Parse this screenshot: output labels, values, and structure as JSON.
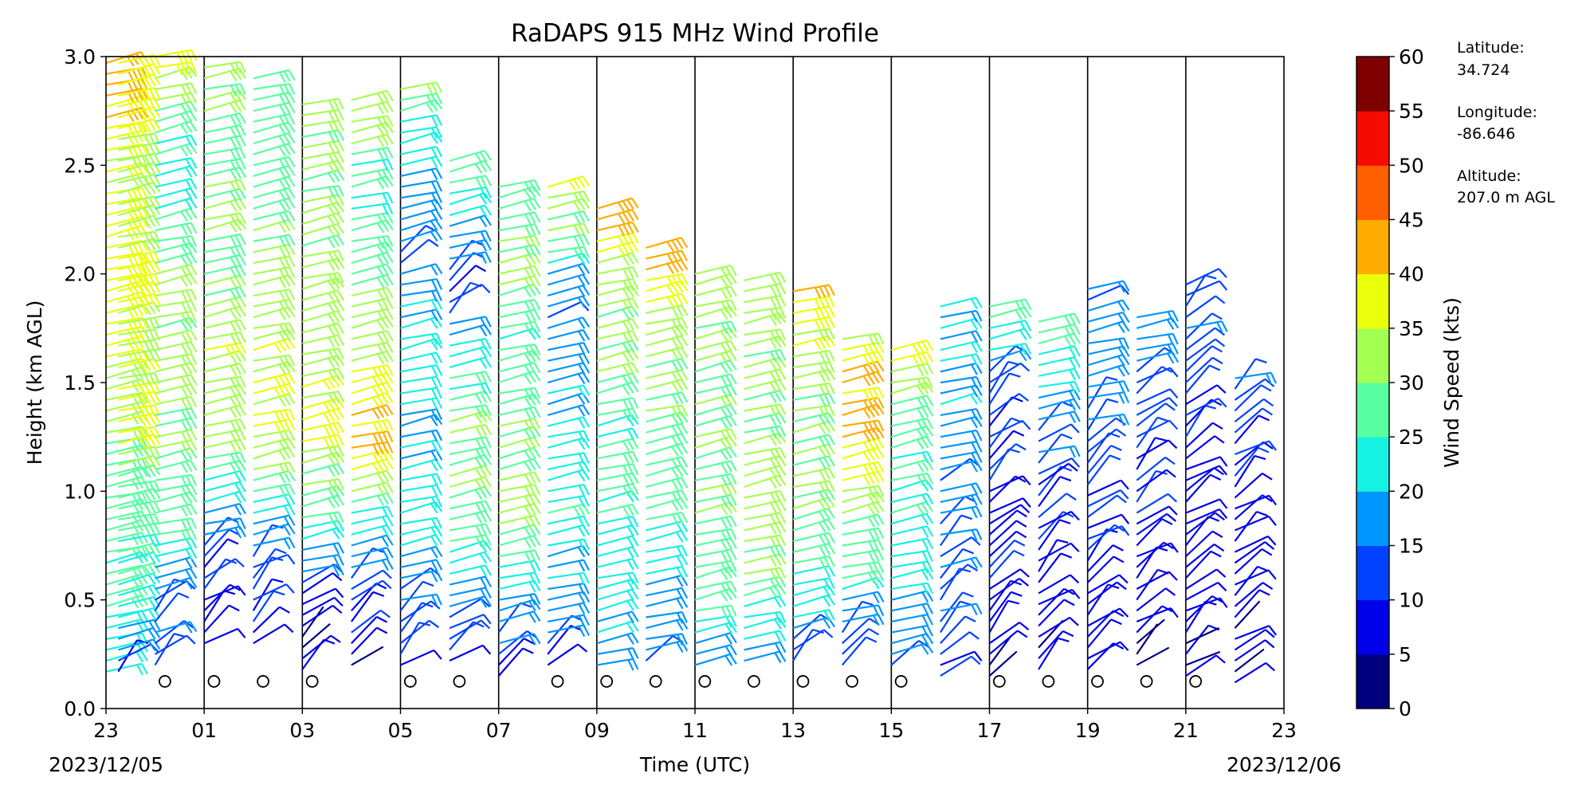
{
  "chart_data": {
    "type": "wind_barb_profile",
    "title": "RaDAPS 915 MHz Wind Profile",
    "xlabel": "Time (UTC)",
    "ylabel": "Height (km AGL)",
    "ylim": [
      0,
      3.0
    ],
    "y_ticks": [
      "0.0",
      "0.5",
      "1.0",
      "1.5",
      "2.0",
      "2.5",
      "3.0"
    ],
    "x_ticks": [
      "23",
      "01",
      "03",
      "05",
      "07",
      "09",
      "11",
      "13",
      "15",
      "17",
      "19",
      "21",
      "23"
    ],
    "x_hours": [
      -1,
      1,
      3,
      5,
      7,
      9,
      11,
      13,
      15,
      17,
      19,
      21,
      23
    ],
    "x_range_hours": [
      -1,
      23
    ],
    "start_date_label": "2023/12/05",
    "end_date_label": "2023/12/06",
    "vertical_lines_hours": [
      1,
      3,
      5,
      7,
      9,
      11,
      13,
      15,
      17,
      19,
      21
    ],
    "grid": false,
    "colorbar": {
      "label": "Wind Speed (kts)",
      "ticks": [
        "0",
        "5",
        "10",
        "15",
        "20",
        "25",
        "30",
        "35",
        "40",
        "45",
        "50",
        "55",
        "60"
      ],
      "colors": [
        "#00007f",
        "#0000e9",
        "#0042ff",
        "#0096ff",
        "#15f2e1",
        "#58ffa0",
        "#a4ff53",
        "#eaff0b",
        "#ffac00",
        "#ff5f00",
        "#f50b00",
        "#7f0000"
      ]
    },
    "barb_color_scale": [
      {
        "kts": 0,
        "color": "#00007f"
      },
      {
        "kts": 5,
        "color": "#0000e9"
      },
      {
        "kts": 10,
        "color": "#0042ff"
      },
      {
        "kts": 15,
        "color": "#0096ff"
      },
      {
        "kts": 20,
        "color": "#15f2e1"
      },
      {
        "kts": 25,
        "color": "#58ffa0"
      },
      {
        "kts": 30,
        "color": "#a4ff53"
      },
      {
        "kts": 35,
        "color": "#eaff0b"
      },
      {
        "kts": 40,
        "color": "#ffac00"
      },
      {
        "kts": 45,
        "color": "#ff5f00"
      },
      {
        "kts": 50,
        "color": "#f50b00"
      },
      {
        "kts": 55,
        "color": "#7f0000"
      }
    ],
    "calm_marker_height_km": 0.125,
    "calm_markers_hours": [
      0.2,
      1.2,
      2.2,
      3.2,
      5.2,
      6.2,
      8.2,
      9.2,
      10.2,
      11.2,
      12.2,
      13.2,
      14.2,
      15.2,
      17.2,
      18.2,
      19.2,
      20.2,
      21.2
    ],
    "profiles": [
      {
        "hour": -1.0,
        "top_km": 3.0,
        "bottom_km": 0.17,
        "speed_profile": [
          [
            0.17,
            22
          ],
          [
            0.5,
            25
          ],
          [
            1.0,
            28
          ],
          [
            1.5,
            35
          ],
          [
            2.0,
            37
          ],
          [
            2.5,
            36
          ],
          [
            3.0,
            45
          ]
        ]
      },
      {
        "hour": -0.75,
        "top_km": 3.0,
        "bottom_km": 0.17,
        "speed_profile": [
          [
            0.17,
            10
          ],
          [
            0.4,
            22
          ],
          [
            0.8,
            27
          ],
          [
            1.0,
            28
          ],
          [
            1.3,
            38
          ],
          [
            1.7,
            32
          ],
          [
            2.0,
            36
          ],
          [
            2.5,
            32
          ],
          [
            3.0,
            40
          ]
        ]
      },
      {
        "hour": 0.0,
        "top_km": 3.0,
        "bottom_km": 0.2,
        "speed_profile": [
          [
            0.2,
            12
          ],
          [
            0.5,
            15
          ],
          [
            0.8,
            25
          ],
          [
            1.2,
            30
          ],
          [
            1.6,
            32
          ],
          [
            2.0,
            30
          ],
          [
            2.4,
            22
          ],
          [
            3.0,
            36
          ]
        ]
      },
      {
        "hour": 1.0,
        "top_km": 2.95,
        "bottom_km": 0.3,
        "speed_profile": [
          [
            0.3,
            8
          ],
          [
            0.6,
            10
          ],
          [
            0.9,
            20
          ],
          [
            1.2,
            32
          ],
          [
            1.6,
            35
          ],
          [
            2.0,
            30
          ],
          [
            2.5,
            28
          ],
          [
            2.95,
            33
          ]
        ]
      },
      {
        "hour": 2.0,
        "top_km": 2.9,
        "bottom_km": 0.3,
        "speed_profile": [
          [
            0.3,
            8
          ],
          [
            0.6,
            12
          ],
          [
            0.9,
            22
          ],
          [
            1.3,
            36
          ],
          [
            1.7,
            34
          ],
          [
            2.2,
            30
          ],
          [
            2.9,
            28
          ]
        ]
      },
      {
        "hour": 3.0,
        "top_km": 2.8,
        "bottom_km": 0.18,
        "speed_profile": [
          [
            0.18,
            5
          ],
          [
            0.5,
            8
          ],
          [
            0.8,
            22
          ],
          [
            1.2,
            35
          ],
          [
            1.5,
            36
          ],
          [
            1.9,
            32
          ],
          [
            2.4,
            30
          ],
          [
            2.8,
            32
          ]
        ]
      },
      {
        "hour": 4.0,
        "top_km": 2.8,
        "bottom_km": 0.2,
        "speed_profile": [
          [
            0.2,
            6
          ],
          [
            0.6,
            14
          ],
          [
            0.9,
            25
          ],
          [
            1.2,
            42
          ],
          [
            1.6,
            36
          ],
          [
            2.0,
            30
          ],
          [
            2.4,
            24
          ],
          [
            2.8,
            35
          ]
        ]
      },
      {
        "hour": 5.0,
        "top_km": 2.85,
        "bottom_km": 0.2,
        "speed_profile": [
          [
            0.2,
            8
          ],
          [
            0.5,
            15
          ],
          [
            0.9,
            22
          ],
          [
            1.3,
            20
          ],
          [
            1.7,
            22
          ],
          [
            2.1,
            15
          ],
          [
            2.5,
            20
          ],
          [
            2.85,
            30
          ]
        ]
      },
      {
        "hour": 6.0,
        "top_km": 2.55,
        "bottom_km": 0.22,
        "speed_profile": [
          [
            0.22,
            10
          ],
          [
            0.5,
            16
          ],
          [
            0.8,
            28
          ],
          [
            1.2,
            30
          ],
          [
            1.6,
            25
          ],
          [
            1.9,
            10
          ],
          [
            2.2,
            18
          ],
          [
            2.55,
            30
          ]
        ]
      },
      {
        "hour": 7.0,
        "top_km": 2.4,
        "bottom_km": 0.15,
        "speed_profile": [
          [
            0.15,
            8
          ],
          [
            0.5,
            20
          ],
          [
            0.9,
            32
          ],
          [
            1.3,
            30
          ],
          [
            1.7,
            25
          ],
          [
            2.0,
            30
          ],
          [
            2.4,
            28
          ]
        ]
      },
      {
        "hour": 8.0,
        "top_km": 2.4,
        "bottom_km": 0.2,
        "speed_profile": [
          [
            0.2,
            10
          ],
          [
            0.5,
            18
          ],
          [
            1.0,
            25
          ],
          [
            1.5,
            20
          ],
          [
            1.9,
            15
          ],
          [
            2.2,
            30
          ],
          [
            2.4,
            36
          ]
        ]
      },
      {
        "hour": 9.0,
        "top_km": 2.3,
        "bottom_km": 0.2,
        "speed_profile": [
          [
            0.2,
            18
          ],
          [
            0.6,
            22
          ],
          [
            1.0,
            25
          ],
          [
            1.5,
            28
          ],
          [
            2.0,
            33
          ],
          [
            2.3,
            43
          ]
        ]
      },
      {
        "hour": 10.0,
        "top_km": 2.15,
        "bottom_km": 0.22,
        "speed_profile": [
          [
            0.22,
            15
          ],
          [
            0.6,
            22
          ],
          [
            1.0,
            26
          ],
          [
            1.5,
            30
          ],
          [
            1.9,
            36
          ],
          [
            2.15,
            43
          ]
        ]
      },
      {
        "hour": 11.0,
        "top_km": 2.0,
        "bottom_km": 0.2,
        "speed_profile": [
          [
            0.2,
            18
          ],
          [
            0.6,
            28
          ],
          [
            1.0,
            30
          ],
          [
            1.5,
            30
          ],
          [
            2.0,
            33
          ]
        ]
      },
      {
        "hour": 12.0,
        "top_km": 2.0,
        "bottom_km": 0.22,
        "speed_profile": [
          [
            0.22,
            15
          ],
          [
            0.6,
            30
          ],
          [
            1.0,
            32
          ],
          [
            1.5,
            30
          ],
          [
            2.0,
            32
          ]
        ]
      },
      {
        "hour": 13.0,
        "top_km": 1.95,
        "bottom_km": 0.22,
        "speed_profile": [
          [
            0.22,
            12
          ],
          [
            0.6,
            25
          ],
          [
            1.0,
            30
          ],
          [
            1.4,
            30
          ],
          [
            1.7,
            36
          ],
          [
            1.95,
            43
          ]
        ]
      },
      {
        "hour": 14.0,
        "top_km": 1.7,
        "bottom_km": 0.2,
        "speed_profile": [
          [
            0.2,
            10
          ],
          [
            0.6,
            25
          ],
          [
            1.0,
            33
          ],
          [
            1.3,
            42
          ],
          [
            1.6,
            40
          ],
          [
            1.7,
            32
          ]
        ]
      },
      {
        "hour": 15.0,
        "top_km": 1.67,
        "bottom_km": 0.2,
        "speed_profile": [
          [
            0.2,
            15
          ],
          [
            0.6,
            22
          ],
          [
            1.0,
            25
          ],
          [
            1.4,
            28
          ],
          [
            1.67,
            40
          ]
        ]
      },
      {
        "hour": 16.0,
        "top_km": 1.88,
        "bottom_km": 0.15,
        "speed_profile": [
          [
            0.15,
            10
          ],
          [
            0.5,
            15
          ],
          [
            1.0,
            16
          ],
          [
            1.5,
            20
          ],
          [
            1.88,
            22
          ]
        ]
      },
      {
        "hour": 17.0,
        "top_km": 1.85,
        "bottom_km": 0.15,
        "speed_profile": [
          [
            0.15,
            6
          ],
          [
            0.5,
            8
          ],
          [
            1.0,
            10
          ],
          [
            1.5,
            12
          ],
          [
            1.85,
            28
          ]
        ]
      },
      {
        "hour": 18.0,
        "top_km": 1.82,
        "bottom_km": 0.18,
        "speed_profile": [
          [
            0.18,
            5
          ],
          [
            0.5,
            8
          ],
          [
            1.0,
            10
          ],
          [
            1.5,
            20
          ],
          [
            1.82,
            30
          ]
        ]
      },
      {
        "hour": 19.0,
        "top_km": 1.95,
        "bottom_km": 0.18,
        "speed_profile": [
          [
            0.18,
            5
          ],
          [
            0.6,
            8
          ],
          [
            1.0,
            10
          ],
          [
            1.5,
            18
          ],
          [
            1.95,
            15
          ]
        ]
      },
      {
        "hour": 20.0,
        "top_km": 1.8,
        "bottom_km": 0.2,
        "speed_profile": [
          [
            0.2,
            5
          ],
          [
            0.6,
            8
          ],
          [
            1.0,
            10
          ],
          [
            1.4,
            14
          ],
          [
            1.8,
            18
          ]
        ]
      },
      {
        "hour": 21.0,
        "top_km": 1.95,
        "bottom_km": 0.15,
        "speed_profile": [
          [
            0.15,
            5
          ],
          [
            0.5,
            6
          ],
          [
            1.0,
            8
          ],
          [
            1.5,
            12
          ],
          [
            1.95,
            15
          ]
        ]
      },
      {
        "hour": 22.0,
        "top_km": 1.55,
        "bottom_km": 0.12,
        "speed_profile": [
          [
            0.12,
            5
          ],
          [
            0.5,
            6
          ],
          [
            1.0,
            8
          ],
          [
            1.4,
            10
          ],
          [
            1.55,
            18
          ]
        ]
      }
    ]
  },
  "station": {
    "latitude_label": "Latitude:",
    "latitude_value": "34.724",
    "longitude_label": "Longitude:",
    "longitude_value": "-86.646",
    "altitude_label": "Altitude:",
    "altitude_value": "207.0 m AGL"
  }
}
